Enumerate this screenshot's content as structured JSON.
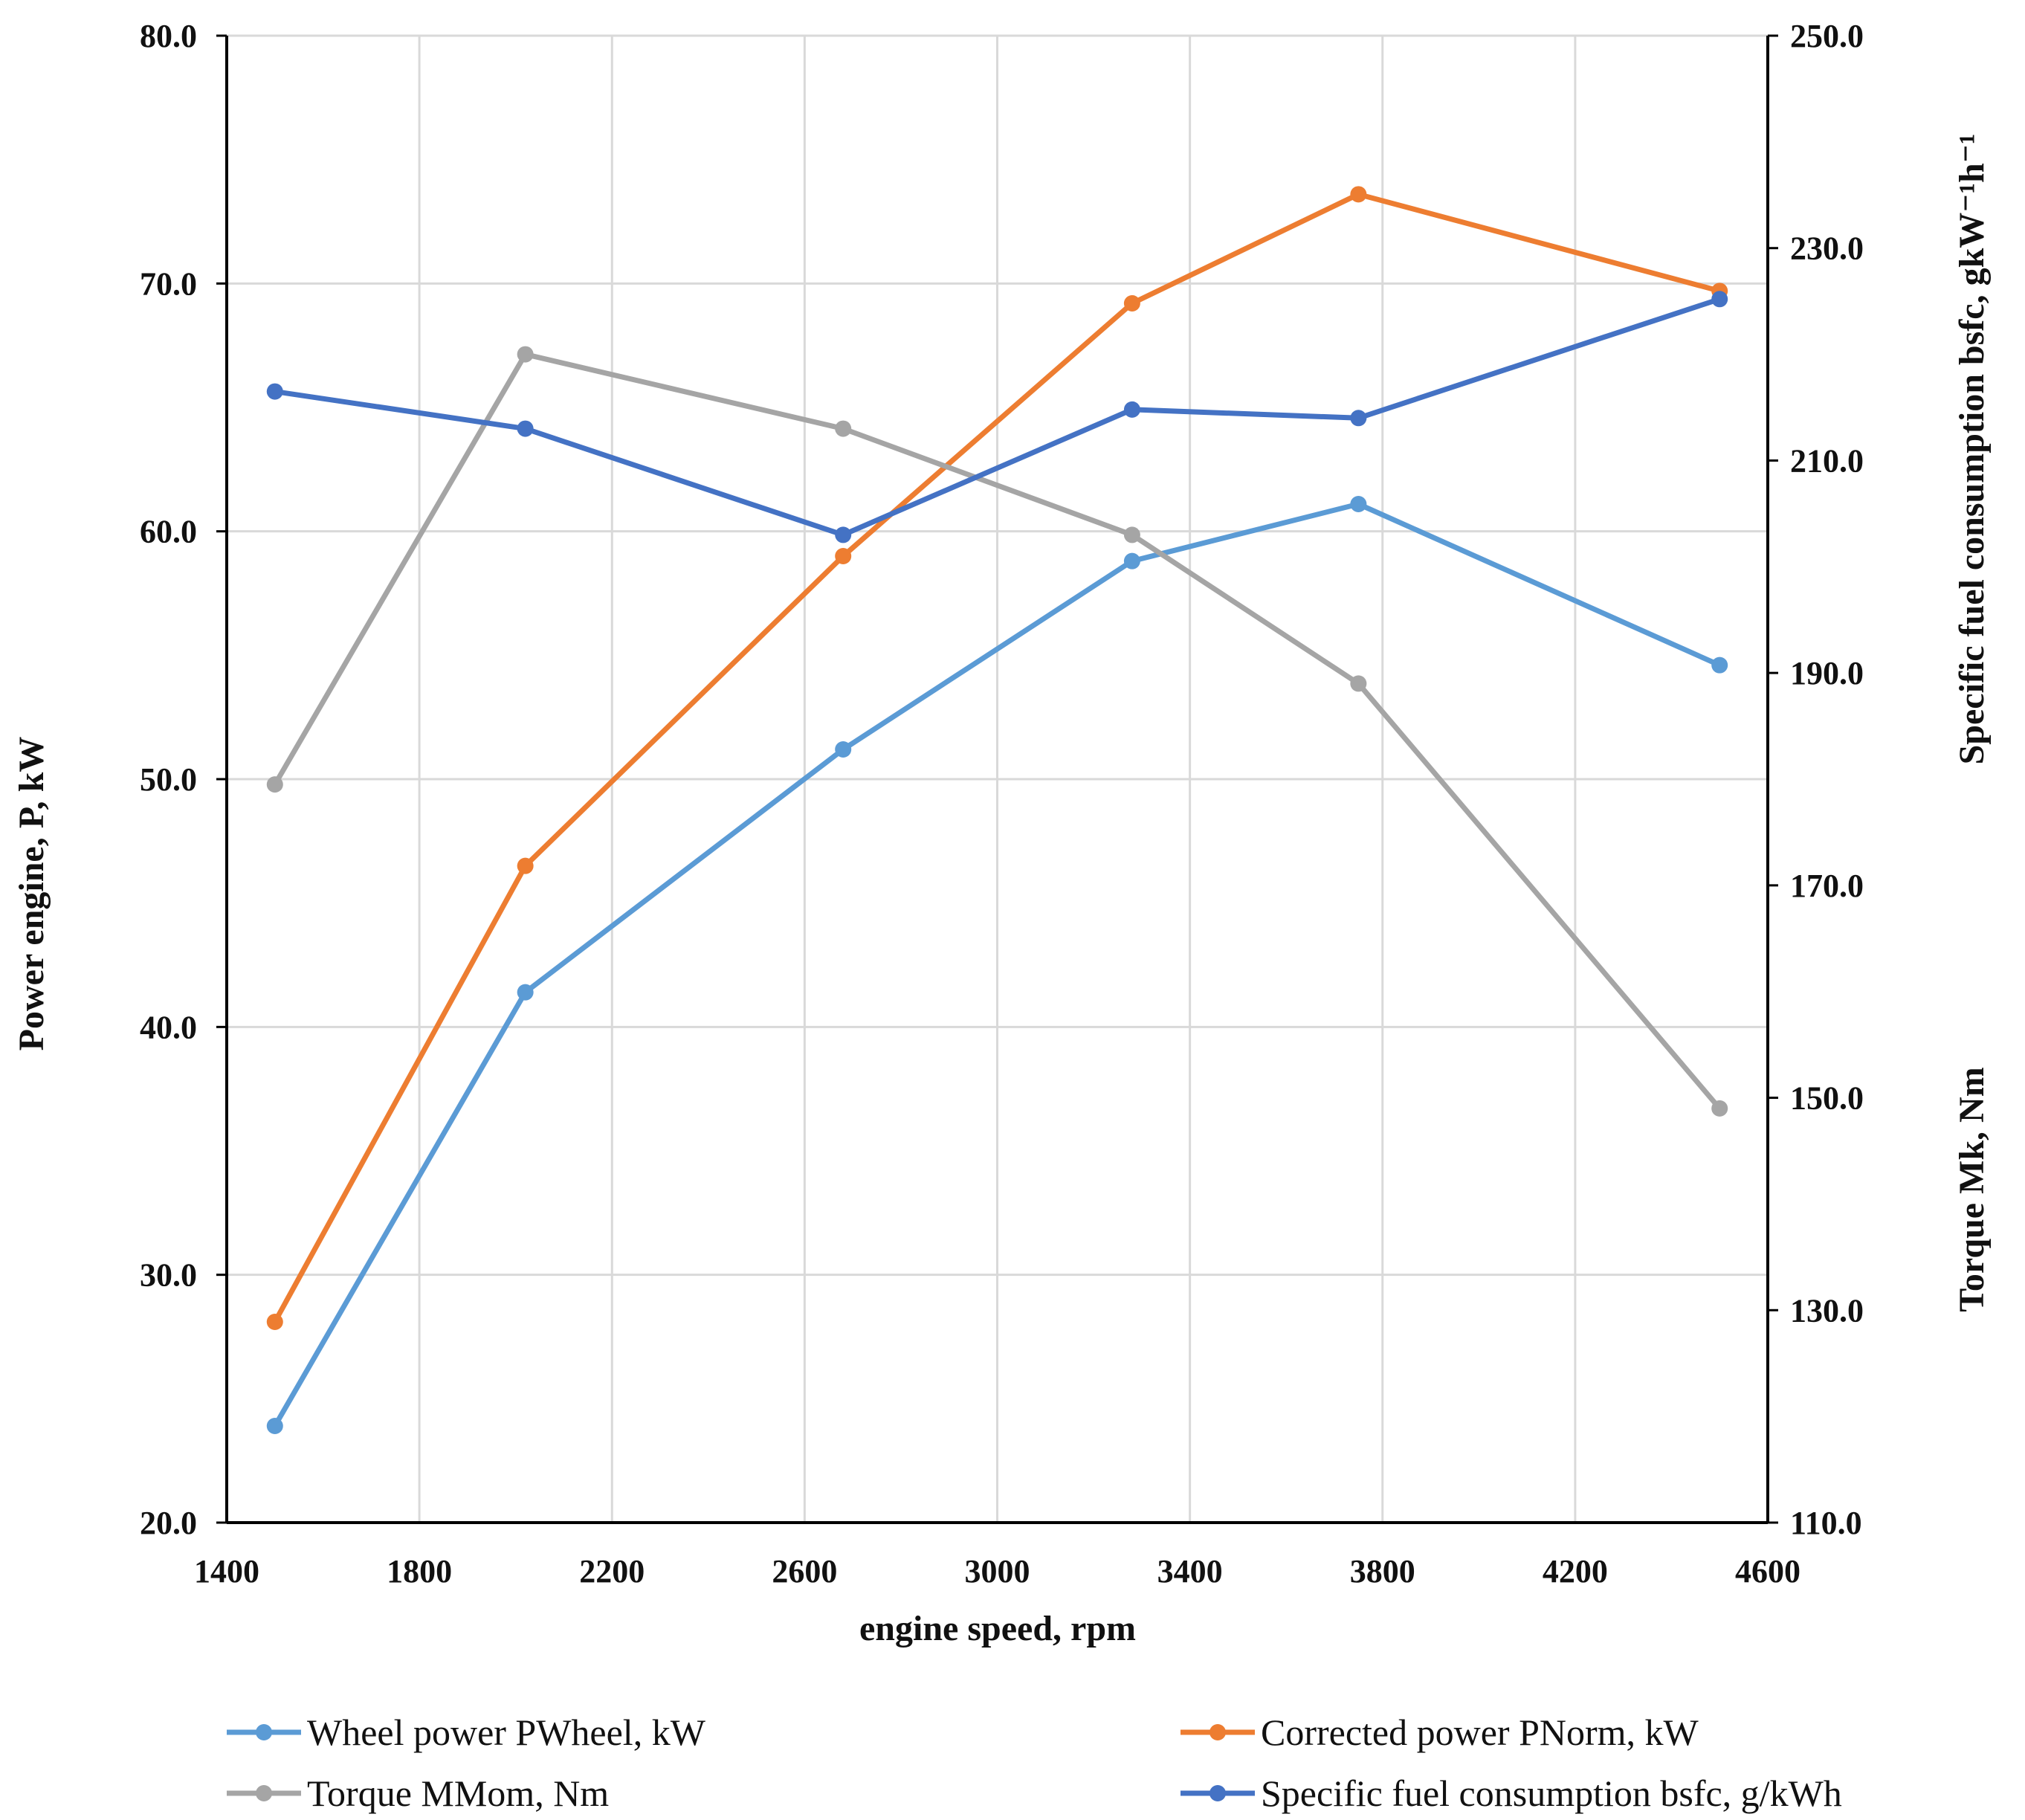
{
  "chart_data": {
    "type": "line",
    "x": [
      1500,
      2020,
      2680,
      3280,
      3750,
      4500
    ],
    "xlabel": "engine speed, rpm",
    "xlim": [
      1400,
      4600
    ],
    "x_ticks": [
      "1400",
      "1800",
      "2200",
      "2600",
      "3000",
      "3400",
      "3800",
      "4200",
      "4600"
    ],
    "ylabel_left": "Power engine, P, kW",
    "ylim_left": [
      20,
      80
    ],
    "y_left_ticks": [
      "20.0",
      "30.0",
      "40.0",
      "50.0",
      "60.0",
      "70.0",
      "80.0"
    ],
    "ylabel_right_top": "Specific fuel consumption bsfc, gkW⁻¹h⁻¹",
    "ylabel_right_bottom": "Torque Mk, Nm",
    "ylim_right": [
      110,
      250
    ],
    "y_right_ticks": [
      "110.0",
      "130.0",
      "150.0",
      "170.0",
      "190.0",
      "210.0",
      "230.0",
      "250.0"
    ],
    "grid": true,
    "legend_position": "bottom",
    "series": [
      {
        "name": "Wheel power  PWheel, kW",
        "axis": "left",
        "color": "#5b9bd5",
        "values": [
          23.9,
          41.4,
          51.2,
          58.8,
          61.1,
          54.6
        ]
      },
      {
        "name": "Corrected power  PNorm, kW",
        "axis": "left",
        "color": "#ed7d31",
        "values": [
          28.1,
          46.5,
          59.0,
          69.2,
          73.6,
          69.7
        ]
      },
      {
        "name": "Torque MMom, Nm",
        "axis": "right",
        "color": "#a5a5a5",
        "values": [
          179.5,
          220.0,
          213.0,
          203.0,
          189.0,
          149.0
        ]
      },
      {
        "name": "Specific fuel consumption bsfc, g/kWh",
        "axis": "right",
        "color": "#4472c4",
        "values": [
          216.5,
          213.0,
          203.0,
          214.8,
          214.0,
          225.2
        ]
      }
    ]
  }
}
